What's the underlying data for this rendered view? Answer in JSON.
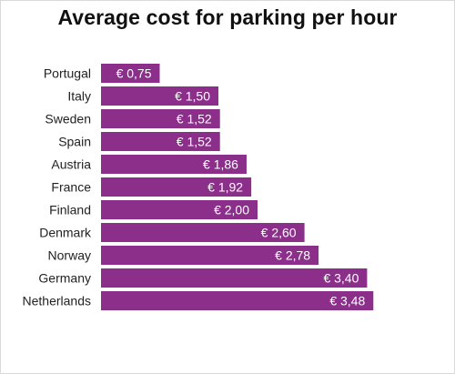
{
  "chart_data": {
    "type": "bar",
    "orientation": "horizontal",
    "title": "Average cost for parking per hour",
    "categories": [
      "Portugal",
      "Italy",
      "Sweden",
      "Spain",
      "Austria",
      "France",
      "Finland",
      "Denmark",
      "Norway",
      "Germany",
      "Netherlands"
    ],
    "values": [
      0.75,
      1.5,
      1.52,
      1.52,
      1.86,
      1.92,
      2.0,
      2.6,
      2.78,
      3.4,
      3.48
    ],
    "value_labels": [
      "€ 0,75",
      "€ 1,50",
      "€ 1,52",
      "€ 1,52",
      "€ 1,86",
      "€ 1,92",
      "€ 2,00",
      "€ 2,60",
      "€ 2,78",
      "€ 3,40",
      "€ 3,48"
    ],
    "bar_color": "#8b2f8b",
    "xlabel": "",
    "ylabel": "",
    "grid": false,
    "legend": "none"
  }
}
